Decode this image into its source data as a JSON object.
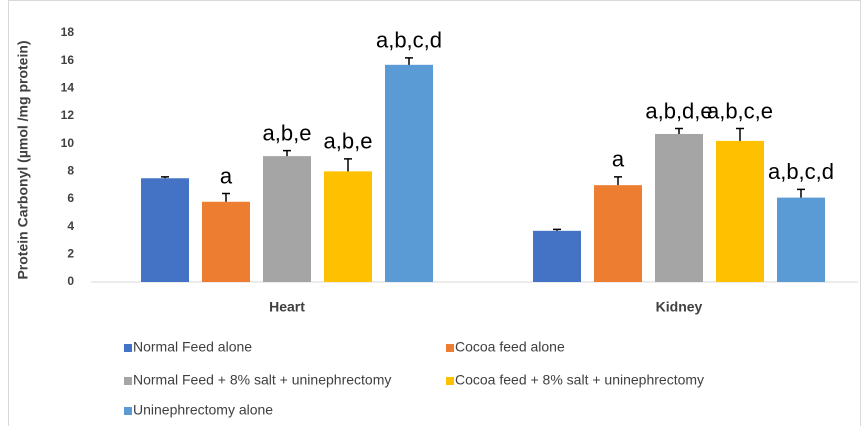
{
  "chart_data": {
    "type": "bar",
    "y_label": "Protein Carbonyl (µmol /mg protein)",
    "categories": [
      "Heart",
      "Kidney"
    ],
    "series": [
      {
        "name": "Normal Feed alone",
        "color": "#4472c4",
        "values": [
          7.5,
          3.7
        ],
        "errors": [
          0.1,
          0.1
        ],
        "annotations": [
          null,
          null
        ]
      },
      {
        "name": "Cocoa feed alone",
        "color": "#ed7d31",
        "values": [
          5.8,
          7.0
        ],
        "errors": [
          0.6,
          0.6
        ],
        "annotations": [
          "a",
          "a"
        ]
      },
      {
        "name": "Normal Feed + 8% salt + uninephrectomy",
        "color": "#a5a5a5",
        "values": [
          9.1,
          10.7
        ],
        "errors": [
          0.4,
          0.4
        ],
        "annotations": [
          "a,b,e",
          "a,b,d,e"
        ]
      },
      {
        "name": "Cocoa feed + 8% salt + uninephrectomy",
        "color": "#ffc000",
        "values": [
          8.0,
          10.2
        ],
        "errors": [
          0.9,
          0.9
        ],
        "annotations": [
          "a,b,e",
          "a,b,c,e"
        ]
      },
      {
        "name": "Uninephrectomy alone",
        "color": "#5b9bd5",
        "values": [
          15.7,
          6.1
        ],
        "errors": [
          0.5,
          0.6
        ],
        "annotations": [
          "a,b,c,d",
          "a,b,c,d"
        ]
      }
    ],
    "ylim": [
      0,
      18
    ],
    "yticks": [
      0,
      2,
      4,
      6,
      8,
      10,
      12,
      14,
      16,
      18
    ],
    "grid": false,
    "legend": "bottom"
  }
}
